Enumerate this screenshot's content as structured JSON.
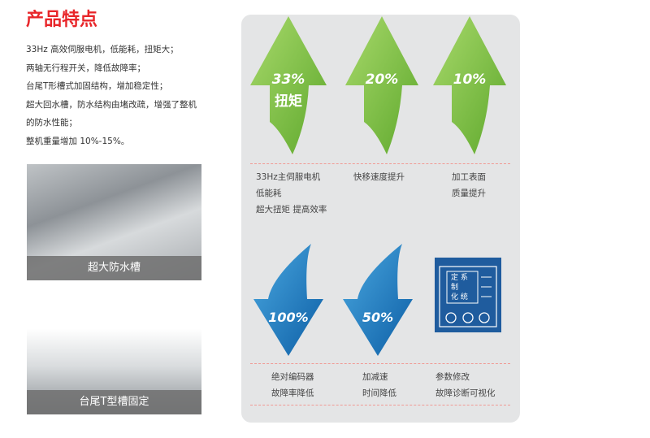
{
  "title": "产品特点",
  "features": [
    "33Hz 高效伺服电机，低能耗，扭矩大；",
    "两轴无行程开关，降低故障率；",
    "台尾T形槽式加固结构，增加稳定性；",
    "超大回水槽，防水结构由堵改疏，增强了整机的防水性能；",
    "整机重量增加 10%-15%。"
  ],
  "photos": [
    {
      "caption": "超大防水槽"
    },
    {
      "caption": "台尾T型槽固定"
    }
  ],
  "up_arrows": [
    {
      "value": "33%",
      "sub": "扭矩",
      "lines": [
        "33Hz主伺服电机",
        "低能耗",
        "超大扭矩  提高效率"
      ]
    },
    {
      "value": "20%",
      "lines": [
        "快移速度提升"
      ]
    },
    {
      "value": "10%",
      "lines": [
        "加工表面",
        "质量提升"
      ]
    }
  ],
  "down_arrows": [
    {
      "value": "100%",
      "lines": [
        "绝对编码器",
        "故障率降低"
      ]
    },
    {
      "value": "50%",
      "lines": [
        "加减速",
        "时间降低"
      ]
    }
  ],
  "system_icon": {
    "text": [
      "定",
      "系",
      "制",
      "化",
      "统"
    ],
    "lines": [
      "参数修改",
      "故障诊断可视化"
    ]
  },
  "colors": {
    "title": "#e8262a",
    "green": "#7cc242",
    "blue": "#1a6fb5",
    "panel": "#e4e5e6"
  }
}
